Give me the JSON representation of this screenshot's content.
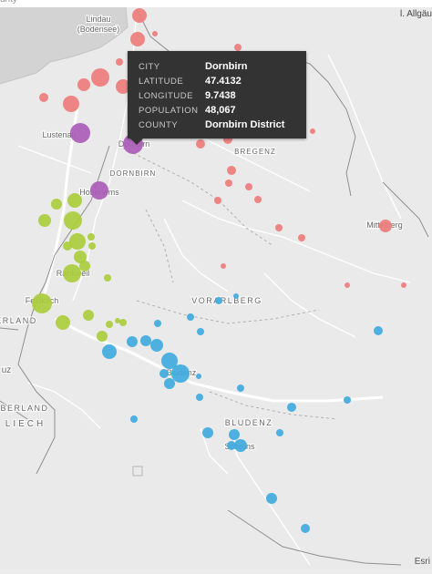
{
  "header": {
    "caption": "unty",
    "top_right_label": "l. Allgäu"
  },
  "attribution": "Esri",
  "colors": {
    "map_background": "#eaeaea",
    "water": "#d3d3d3",
    "roads": "#ffffff",
    "border": "#9a9a9a",
    "labels": "#666666",
    "cluster_pink": "#ee7c7c",
    "cluster_purple": "#a95cb7",
    "cluster_green": "#aacc3c",
    "cluster_blue": "#3faadd"
  },
  "map_labels": [
    {
      "name": "Lindau\n(Bodensee)",
      "kind": "town"
    },
    {
      "name": "Lustenau",
      "kind": "town"
    },
    {
      "name": "Dornbirn",
      "kind": "town"
    },
    {
      "name": "DORNBIRN",
      "kind": "district"
    },
    {
      "name": "BREGENZ",
      "kind": "district"
    },
    {
      "name": "Hohenems",
      "kind": "town"
    },
    {
      "name": "Mittelberg",
      "kind": "town"
    },
    {
      "name": "Rankweil",
      "kind": "town"
    },
    {
      "name": "VORARLBERG",
      "kind": "region"
    },
    {
      "name": "Feldkirch",
      "kind": "town"
    },
    {
      "name": "ERLAND",
      "kind": "region"
    },
    {
      "name": "uz",
      "kind": "town"
    },
    {
      "name": "Bludenz",
      "kind": "town"
    },
    {
      "name": "BLUDENZ",
      "kind": "district"
    },
    {
      "name": "BERLAND",
      "kind": "region"
    },
    {
      "name": "LIECH",
      "kind": "region"
    },
    {
      "name": "Schruns",
      "kind": "town"
    }
  ],
  "tooltip": {
    "rows": [
      {
        "key": "CITY",
        "value": "Dornbirn"
      },
      {
        "key": "LATITUDE",
        "value": "47.4132"
      },
      {
        "key": "LONGITUDE",
        "value": "9.7438"
      },
      {
        "key": "POPULATION",
        "value": "48,067"
      },
      {
        "key": "COUNTY",
        "value": "Dornbirn District"
      }
    ]
  }
}
